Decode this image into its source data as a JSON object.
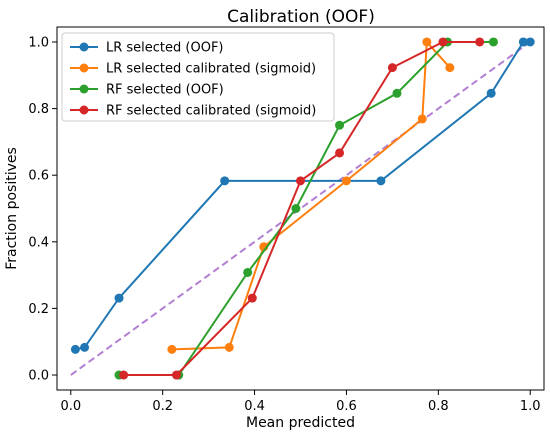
{
  "chart_data": {
    "type": "line",
    "title": "Calibration (OOF)",
    "xlabel": "Mean predicted",
    "ylabel": "Fraction positives",
    "xlim": [
      -0.03,
      1.03
    ],
    "ylim": [
      -0.045,
      1.045
    ],
    "xticks": [
      0.0,
      0.2,
      0.4,
      0.6,
      0.8,
      1.0
    ],
    "yticks": [
      0.0,
      0.2,
      0.4,
      0.6,
      0.8,
      1.0
    ],
    "tick_labels": {
      "x": [
        "0.0",
        "0.2",
        "0.4",
        "0.6",
        "0.8",
        "1.0"
      ],
      "y": [
        "0.0",
        "0.2",
        "0.4",
        "0.6",
        "0.8",
        "1.0"
      ]
    },
    "grid": false,
    "legend_position": "top-left",
    "reference_line": {
      "x": [
        0,
        1
      ],
      "y": [
        0,
        1
      ],
      "style": "dashed",
      "color": "#b27fd2"
    },
    "series": [
      {
        "name": "LR selected (OOF)",
        "color": "#1f77b4",
        "x": [
          0.01,
          0.03,
          0.105,
          0.335,
          0.675,
          0.915,
          0.985,
          1.0
        ],
        "y": [
          0.077,
          0.083,
          0.231,
          0.583,
          0.583,
          0.846,
          1.0,
          1.0
        ]
      },
      {
        "name": "LR selected calibrated (sigmoid)",
        "color": "#ff7f0e",
        "x": [
          0.22,
          0.345,
          0.42,
          0.6,
          0.765,
          0.775,
          0.825
        ],
        "y": [
          0.077,
          0.083,
          0.385,
          0.583,
          0.769,
          1.0,
          0.923
        ]
      },
      {
        "name": "RF selected (OOF)",
        "color": "#2ca02c",
        "x": [
          0.105,
          0.235,
          0.385,
          0.49,
          0.585,
          0.71,
          0.82,
          0.92
        ],
        "y": [
          0.0,
          0.0,
          0.308,
          0.5,
          0.75,
          0.846,
          1.0,
          1.0
        ]
      },
      {
        "name": "RF selected calibrated (sigmoid)",
        "color": "#d62728",
        "x": [
          0.115,
          0.23,
          0.395,
          0.5,
          0.585,
          0.7,
          0.81,
          0.89
        ],
        "y": [
          0.0,
          0.0,
          0.231,
          0.583,
          0.667,
          0.923,
          1.0,
          1.0
        ]
      }
    ]
  }
}
